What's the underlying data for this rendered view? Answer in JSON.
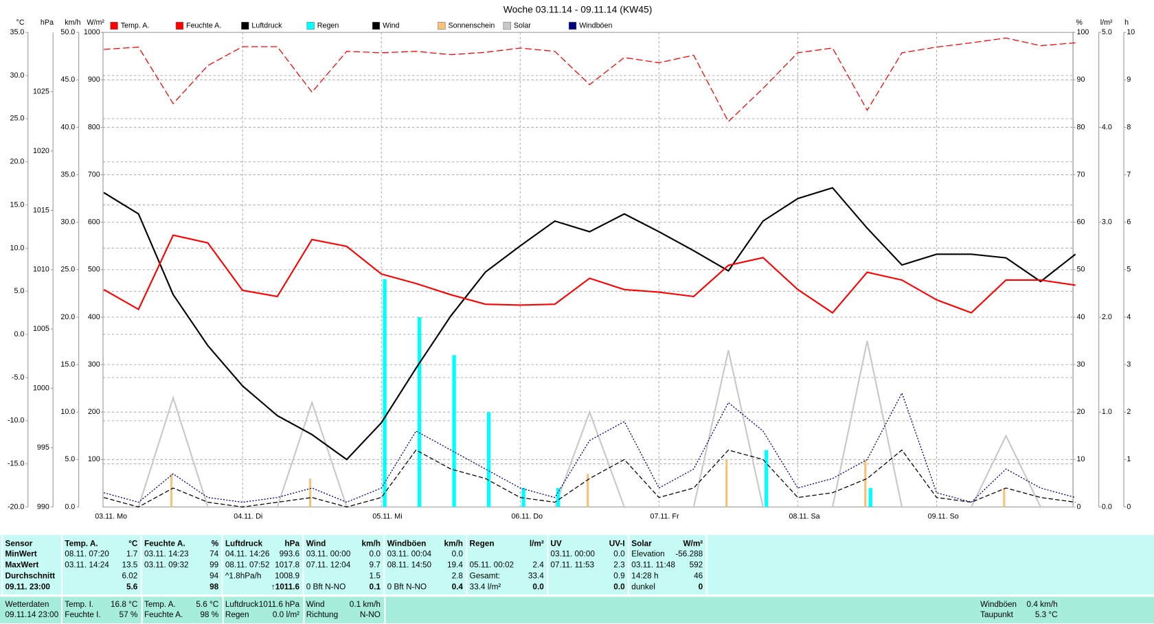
{
  "chart_data": {
    "type": "line",
    "title": "Woche 03.11.14 - 09.11.14 (KW45)",
    "categories": [
      "03.11. Mo",
      null,
      null,
      null,
      "04.11. Di",
      null,
      null,
      null,
      "05.11. Mi",
      null,
      null,
      null,
      "06.11. Do",
      null,
      null,
      null,
      "07.11. Fr",
      null,
      null,
      null,
      "08.11. Sa",
      null,
      null,
      null,
      "09.11. So",
      null,
      null,
      null,
      null
    ],
    "axes": {
      "temp": {
        "label": "°C",
        "color": "#ff0000",
        "grid": true,
        "lim": [
          -20,
          35
        ],
        "ticks": [
          {
            "value": -20,
            "label": "-20.0"
          },
          {
            "value": -15,
            "label": "-15.0"
          },
          {
            "value": -10,
            "label": "-10.0"
          },
          {
            "value": -5,
            "label": "-5.0"
          },
          {
            "value": 0,
            "label": "0.0"
          },
          {
            "value": 5,
            "label": "5.0"
          },
          {
            "value": 10,
            "label": "10.0"
          },
          {
            "value": 15,
            "label": "15.0"
          },
          {
            "value": 20,
            "label": "20.0"
          },
          {
            "value": 25,
            "label": "25.0"
          },
          {
            "value": 30,
            "label": "30.0"
          },
          {
            "value": 35,
            "label": "35.0"
          }
        ]
      },
      "hpa": {
        "label": "hPa",
        "color": "#000000",
        "grid": false,
        "lim": [
          990,
          1030
        ],
        "ticks": [
          990,
          995,
          1000,
          1005,
          1010,
          1015,
          1020,
          1025
        ]
      },
      "kmh": {
        "label": "km/h",
        "color": "#000000",
        "grid": false,
        "lim": [
          0,
          50
        ],
        "ticks": [
          {
            "value": 0,
            "label": "0.0"
          },
          {
            "value": 5,
            "label": "5.0"
          },
          {
            "value": 10,
            "label": "10.0"
          },
          {
            "value": 15,
            "label": "15.0"
          },
          {
            "value": 20,
            "label": "20.0"
          },
          {
            "value": 25,
            "label": "25.0"
          },
          {
            "value": 30,
            "label": "30.0"
          },
          {
            "value": 35,
            "label": "35.0"
          },
          {
            "value": 40,
            "label": "40.0"
          },
          {
            "value": 45,
            "label": "45.0"
          },
          {
            "value": 50,
            "label": "50.0"
          }
        ]
      },
      "wm2": {
        "label": "W/m²",
        "color": "#c8c8c8",
        "grid": false,
        "lim": [
          0,
          1000
        ],
        "ticks": [
          100,
          200,
          300,
          400,
          500,
          600,
          700,
          800,
          900,
          1000
        ]
      },
      "pct": {
        "label": "%",
        "color": "#ff0000",
        "grid": true,
        "lim": [
          0,
          100
        ],
        "ticks": [
          0,
          10,
          20,
          30,
          40,
          50,
          60,
          70,
          80,
          90,
          100
        ]
      },
      "lm2": {
        "label": "l/m²",
        "color": "#00dede",
        "grid": false,
        "lim": [
          0,
          5
        ],
        "ticks": [
          {
            "value": 0,
            "label": "0.0"
          },
          {
            "value": 1,
            "label": "1.0"
          },
          {
            "value": 2,
            "label": "2.0"
          },
          {
            "value": 3,
            "label": "3.0"
          },
          {
            "value": 4,
            "label": "4.0"
          },
          {
            "value": 5,
            "label": "5.0"
          }
        ]
      },
      "h": {
        "label": "h",
        "color": "#f5c37a",
        "grid": false,
        "lim": [
          0,
          10
        ],
        "ticks": [
          0,
          1,
          2,
          3,
          4,
          5,
          6,
          7,
          8,
          9,
          10
        ]
      }
    },
    "series": [
      {
        "name": "Temp. A.",
        "color": "#ff0000",
        "axis": "temp",
        "style": "solid",
        "values": [
          5.2,
          2.9,
          11.5,
          10.6,
          5.1,
          4.4,
          11.0,
          10.2,
          7.0,
          5.9,
          4.6,
          3.5,
          3.4,
          3.5,
          6.5,
          5.2,
          4.9,
          4.4,
          8.0,
          8.9,
          5.2,
          2.5,
          7.2,
          6.3,
          4.0,
          2.5,
          6.3,
          6.3,
          5.7
        ]
      },
      {
        "name": "Feuchte A.",
        "color": "#ff0000",
        "axis": "pct",
        "style": "dashed",
        "values": [
          96.4,
          96.9,
          85,
          93,
          97,
          97,
          87.4,
          96,
          95.7,
          96,
          95.3,
          95.8,
          96.7,
          96,
          89,
          94.7,
          93.6,
          95.2,
          81.2,
          88.2,
          95.7,
          96.7,
          83.6,
          95.7,
          96.9,
          97.8,
          98.8,
          97.2,
          97.8
        ]
      },
      {
        "name": "Luftdruck",
        "color": "#000000",
        "axis": "hpa",
        "style": "solid",
        "values": [
          1016.5,
          1014.7,
          1007.9,
          1003.6,
          1000.2,
          997.7,
          996.1,
          994.0,
          997.1,
          1001.7,
          1006.1,
          1009.8,
          1012.0,
          1014.1,
          1013.2,
          1014.7,
          1013.2,
          1011.6,
          1009.9,
          1014.1,
          1016.0,
          1016.9,
          1013.5,
          1010.4,
          1011.3,
          1011.3,
          1011.0,
          1009.0,
          1011.3
        ]
      },
      {
        "name": "Regen",
        "color": "#00ffff",
        "axis": "lm2",
        "style": "bars",
        "values": [
          0,
          0,
          0,
          0,
          0,
          0,
          0,
          0,
          2.4,
          2.0,
          1.6,
          1.0,
          0.2,
          0.2,
          0,
          0,
          0,
          0,
          0,
          0.6,
          0,
          0,
          0.2,
          0,
          0,
          0,
          0,
          0,
          0
        ]
      },
      {
        "name": "Wind",
        "color": "#000000",
        "axis": "kmh",
        "style": "dashed-thin",
        "values": [
          1,
          0,
          2,
          0.5,
          0,
          0.5,
          1,
          0,
          1,
          6,
          4,
          3,
          1,
          0.5,
          3,
          5,
          1,
          2,
          6,
          5,
          1,
          1.5,
          3,
          6,
          1,
          0.5,
          2,
          1,
          0.5
        ]
      },
      {
        "name": "Sonnenschein",
        "color": "#f5c37a",
        "axis": "h",
        "style": "bars",
        "values": [
          0,
          0,
          0.7,
          0,
          0,
          0,
          0.6,
          0,
          0,
          0,
          0,
          0,
          0,
          0,
          0.7,
          0,
          0,
          0,
          1.0,
          0,
          0,
          0,
          1.0,
          0,
          0,
          0,
          0.4,
          0,
          0
        ]
      },
      {
        "name": "Solar",
        "color": "#c8c8c8",
        "axis": "wm2",
        "style": "solid",
        "values": [
          0,
          0,
          230,
          0,
          0,
          0,
          220,
          0,
          0,
          0,
          0,
          0,
          0,
          0,
          200,
          0,
          0,
          0,
          330,
          0,
          0,
          0,
          350,
          0,
          0,
          0,
          150,
          0,
          0
        ]
      },
      {
        "name": "Windböen",
        "color": "#000080",
        "axis": "kmh",
        "style": "dotted",
        "values": [
          1.5,
          0.5,
          3.5,
          1,
          0.5,
          1,
          2,
          0.5,
          2,
          8,
          6,
          4,
          2,
          1,
          7,
          9,
          2,
          4,
          11,
          8,
          2,
          3,
          5,
          12,
          1.5,
          0.5,
          4,
          2,
          1
        ]
      }
    ]
  },
  "summary_table": {
    "columns": [
      {
        "header": [
          "Sensor"
        ],
        "rows": [
          {
            "l": "MinWert"
          },
          {
            "l": "MaxWert"
          },
          {
            "l": "Durchschnitt"
          },
          {
            "l": "09.11. 23:00"
          }
        ]
      },
      {
        "header": [
          "Temp. A.",
          "°C"
        ],
        "rows": [
          {
            "l": "08.11. 07:20",
            "r": "1.7"
          },
          {
            "l": "03.11. 14:24",
            "r": "13.5"
          },
          {
            "r": "6.02"
          },
          {
            "r": "5.6"
          }
        ]
      },
      {
        "header": [
          "Feuchte A.",
          "%"
        ],
        "rows": [
          {
            "l": "03.11. 14:23",
            "r": "74"
          },
          {
            "l": "03.11. 09:32",
            "r": "99"
          },
          {
            "r": "94"
          },
          {
            "r": "98"
          }
        ]
      },
      {
        "header": [
          "Luftdruck",
          "hPa"
        ],
        "rows": [
          {
            "l": "04.11. 14:26",
            "r": "993.6"
          },
          {
            "l": "08.11. 07:52",
            "r": "1017.8"
          },
          {
            "l": "^1.8hPa/h",
            "r": "1008.9"
          },
          {
            "r": "↑1011.6"
          }
        ]
      },
      {
        "header": [
          "Wind",
          "km/h"
        ],
        "rows": [
          {
            "l": "03.11. 00:00",
            "r": "0.0"
          },
          {
            "l": "07.11. 12:04",
            "r": "9.7"
          },
          {
            "r": "1.5"
          },
          {
            "l": "0 Bft N-NO",
            "r": "0.1"
          }
        ]
      },
      {
        "header": [
          "Windböen",
          "km/h"
        ],
        "rows": [
          {
            "l": "03.11. 00:04",
            "r": "0.0"
          },
          {
            "l": "08.11. 14:50",
            "r": "19.4"
          },
          {
            "r": "2.8"
          },
          {
            "l": "0 Bft N-NO",
            "r": "0.4"
          }
        ]
      },
      {
        "header": [
          "Regen",
          "l/m²"
        ],
        "rows": [
          null,
          {
            "l": "05.11. 00:02",
            "r": "2.4"
          },
          {
            "l": "Gesamt:",
            "r": "33.4"
          },
          {
            "l": "33.4 l/m²",
            "r": "0.0"
          }
        ]
      },
      {
        "header": [
          "UV",
          "UV-I"
        ],
        "rows": [
          {
            "l": "03.11. 00:00",
            "r": "0.0"
          },
          {
            "l": "07.11. 11:53",
            "r": "2.3"
          },
          {
            "r": "0.9"
          },
          {
            "r": "0.0"
          }
        ]
      },
      {
        "header": [
          "Solar",
          "W/m²"
        ],
        "rows": [
          {
            "l": "Elevation",
            "r": "-56.288"
          },
          {
            "l": "03.11. 11:48",
            "r": "592"
          },
          {
            "l": "14:28 h",
            "r": "46"
          },
          {
            "l": "dunkel",
            "r": "0"
          }
        ]
      }
    ]
  },
  "current_table": {
    "groups": [
      {
        "rows": [
          {
            "l": "Wetterdaten"
          },
          {
            "l": "09.11.14 23:00"
          }
        ]
      },
      {
        "rows": [
          {
            "l": "Temp. I.",
            "r": "16.8 °C"
          },
          {
            "l": "Feuchte I.",
            "r": "57 %"
          }
        ]
      },
      {
        "rows": [
          {
            "l": "Temp. A.",
            "r": "5.6 °C"
          },
          {
            "l": "Feuchte A.",
            "r": "98 %"
          }
        ]
      },
      {
        "rows": [
          {
            "l": "Luftdruck",
            "r": "1011.6 hPa"
          },
          {
            "l": "Regen",
            "r": "0.0 l/m²"
          }
        ]
      },
      {
        "rows": [
          {
            "l": "Wind",
            "r": "0.1 km/h"
          },
          {
            "l": "Richtung",
            "r": "N-NO"
          }
        ]
      },
      {
        "rows": [
          {
            "l": "Windböen",
            "r": "0.4 km/h"
          },
          {
            "l": "Taupunkt",
            "r": "5.3 °C"
          }
        ]
      }
    ]
  }
}
